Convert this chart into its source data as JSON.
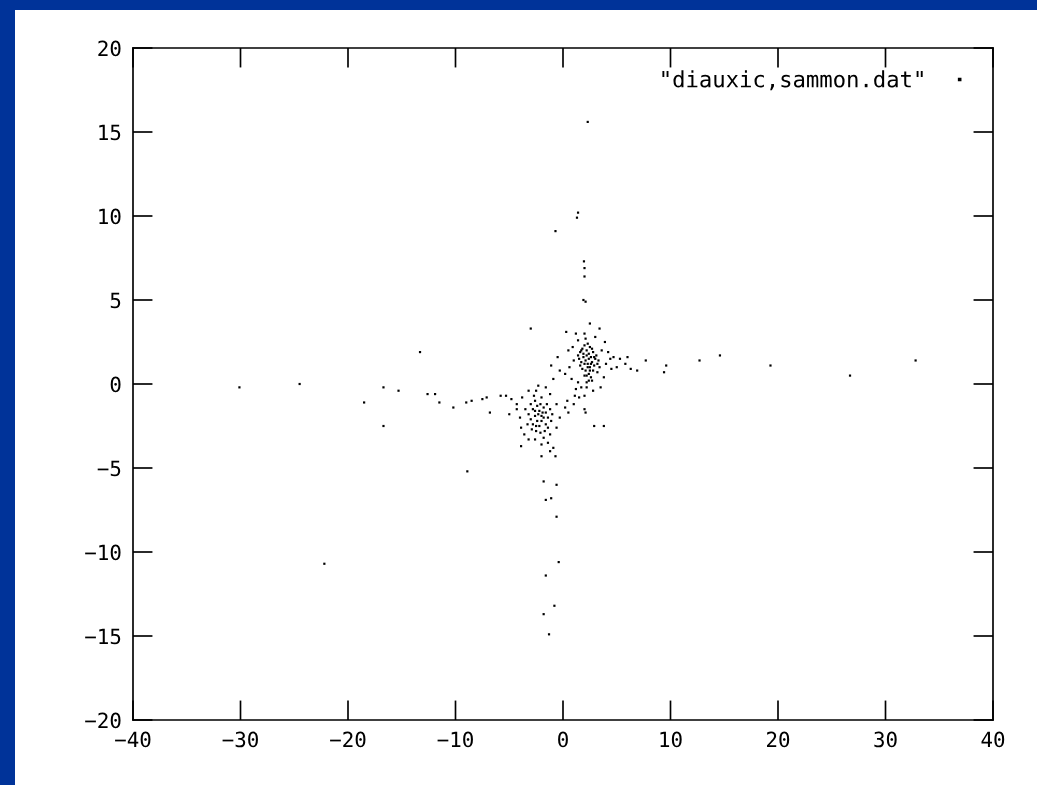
{
  "chart_data": {
    "type": "scatter",
    "xlim": [
      -40,
      40
    ],
    "ylim": [
      -20,
      20
    ],
    "xticks": [
      -40,
      -30,
      -20,
      -10,
      0,
      10,
      20,
      30,
      40
    ],
    "yticks": [
      -20,
      -15,
      -10,
      -5,
      0,
      5,
      10,
      15,
      20
    ],
    "grid": false,
    "legend": "top right",
    "marker": "square",
    "series": [
      {
        "name": "\"diauxic,sammon.dat\"",
        "color": "#000000",
        "x": [
          2.3,
          1.4,
          1.3,
          -0.7,
          1.95,
          2.0,
          2.0,
          1.9,
          2.1,
          -3.0,
          -13.3,
          12.7,
          14.6,
          19.3,
          26.7,
          32.8,
          7.7,
          9.6,
          9.4,
          -30.1,
          -24.5,
          -16.7,
          -15.3,
          -18.5,
          -16.7,
          -12.6,
          -11.9,
          -11.5,
          -10.2,
          -9.0,
          -8.5,
          -7.5,
          -7.1,
          -6.8,
          -5.8,
          -5.3,
          -4.3,
          -22.2,
          -8.9,
          -1.8,
          -0.6,
          -1.6,
          -1.1,
          -0.6,
          -0.4,
          -1.6,
          -0.8,
          -1.8,
          -1.3,
          -3.9,
          -2.0,
          -0.7,
          -1.2,
          2.9,
          3.8,
          0.2,
          1.1,
          1.4,
          2.0,
          2.1,
          2.0,
          2.2,
          2.8,
          0.5,
          1.5,
          1.6,
          1.8,
          2.0,
          2.2,
          2.4,
          2.6,
          2.8,
          3.0,
          1.5,
          1.7,
          1.9,
          2.1,
          2.3,
          2.5,
          2.7,
          2.9,
          3.1,
          3.3,
          1.6,
          1.8,
          2.0,
          2.2,
          2.4,
          2.6,
          2.8,
          2.4,
          2.6,
          2.2,
          2.5,
          2.3,
          2.1,
          2.0,
          1.9,
          2.7,
          3.2,
          1.4,
          2.5,
          2.9,
          2.3,
          2.1,
          1.7,
          3.4,
          2.0,
          2.7,
          2.4,
          2.2,
          0.3,
          0.9,
          1.2,
          1.4,
          2.5,
          3.0,
          3.4,
          3.9,
          4.2,
          4.7,
          5.3,
          5.8,
          6.3,
          6.9,
          4.0,
          4.5,
          3.8,
          3.5,
          3.2,
          1.0,
          0.6,
          0.2,
          -0.3,
          0.8,
          1.2,
          1.7,
          0.4,
          1.0,
          3.6,
          4.4,
          5.0,
          6.0,
          0.5,
          -0.5,
          -1.1,
          -0.9,
          -3.0,
          -2.8,
          -2.6,
          -2.4,
          -2.2,
          -2.0,
          -1.8,
          -1.6,
          -1.4,
          -1.2,
          -3.2,
          -3.0,
          -2.8,
          -2.6,
          -2.4,
          -2.2,
          -2.0,
          -1.8,
          -1.6,
          -1.4,
          -3.3,
          -2.9,
          -2.5,
          -2.1,
          -1.7,
          -2.7,
          -2.5,
          -2.3,
          -2.6,
          -2.3,
          -2.1,
          -1.9,
          -2.5,
          -1.1,
          -1.0,
          -3.5,
          -1.5,
          -2.0,
          -3.8,
          -4.3,
          -4.0,
          -3.6,
          -3.2,
          -2.6,
          -1.8,
          -1.2,
          -0.6,
          -0.3,
          -0.6,
          -1.2,
          -1.6,
          -3.2,
          -4.8,
          -5.0,
          -3.9,
          -2.0,
          -1.4,
          -0.9
        ],
        "values": [
          15.6,
          10.2,
          9.9,
          9.1,
          7.3,
          6.9,
          6.4,
          5.0,
          4.9,
          3.3,
          1.9,
          1.4,
          1.7,
          1.1,
          0.5,
          1.4,
          1.4,
          1.1,
          0.7,
          -0.2,
          0.0,
          -0.2,
          -0.4,
          -1.1,
          -2.5,
          -0.6,
          -0.6,
          -1.1,
          -1.4,
          -1.1,
          -1.0,
          -0.9,
          -0.8,
          -1.7,
          -0.7,
          -0.7,
          -1.5,
          -10.7,
          -5.2,
          -5.8,
          -6.0,
          -6.9,
          -6.8,
          -7.9,
          -10.6,
          -11.4,
          -13.2,
          -13.7,
          -14.9,
          -3.7,
          -4.3,
          -4.3,
          -4.0,
          -2.5,
          -2.5,
          -1.4,
          -0.7,
          0.1,
          -0.7,
          -1.7,
          -1.5,
          -0.2,
          -0.4,
          -1.7,
          -0.8,
          1.9,
          2.1,
          2.3,
          2.0,
          1.8,
          1.6,
          1.9,
          1.5,
          1.5,
          1.3,
          1.6,
          1.4,
          1.2,
          1.0,
          1.3,
          1.1,
          1.7,
          1.4,
          1.1,
          0.9,
          1.2,
          1.7,
          1.5,
          1.2,
          0.8,
          0.6,
          0.4,
          0.5,
          0.8,
          2.4,
          2.7,
          3.0,
          1.8,
          2.1,
          1.2,
          1.7,
          2.2,
          1.6,
          1.0,
          0.8,
          2.0,
          1.0,
          0.5,
          0.2,
          0.2,
          0.1,
          3.1,
          2.2,
          3.0,
          2.6,
          3.6,
          2.8,
          3.3,
          2.5,
          1.9,
          1.6,
          1.5,
          1.2,
          0.9,
          0.8,
          1.2,
          0.9,
          0.4,
          -0.2,
          0.7,
          1.4,
          1.0,
          0.6,
          0.8,
          0.3,
          -0.3,
          -0.2,
          -1.0,
          -1.2,
          2.0,
          1.5,
          1.0,
          1.6,
          2.0,
          1.6,
          1.1,
          0.3,
          -1.2,
          -1.5,
          -1.0,
          -1.3,
          -1.6,
          -1.9,
          -1.4,
          -1.7,
          -2.0,
          -1.5,
          -1.8,
          -2.1,
          -2.4,
          -1.9,
          -2.2,
          -2.5,
          -2.2,
          -2.0,
          -2.4,
          -2.6,
          -2.4,
          -2.7,
          -2.8,
          -2.9,
          -2.8,
          -0.7,
          -0.4,
          -0.1,
          -1.6,
          -1.8,
          -1.2,
          -1.7,
          -2.5,
          -2.2,
          -1.8,
          -1.5,
          -1.2,
          -0.8,
          -0.8,
          -1.2,
          -2.0,
          -3.0,
          -3.3,
          -3.3,
          -3.2,
          -3.0,
          -2.6,
          -2.0,
          -1.2,
          -0.6,
          -0.2,
          -0.4,
          -0.9,
          -1.8,
          -2.6,
          -3.6,
          -3.5,
          -3.8
        ]
      }
    ]
  }
}
